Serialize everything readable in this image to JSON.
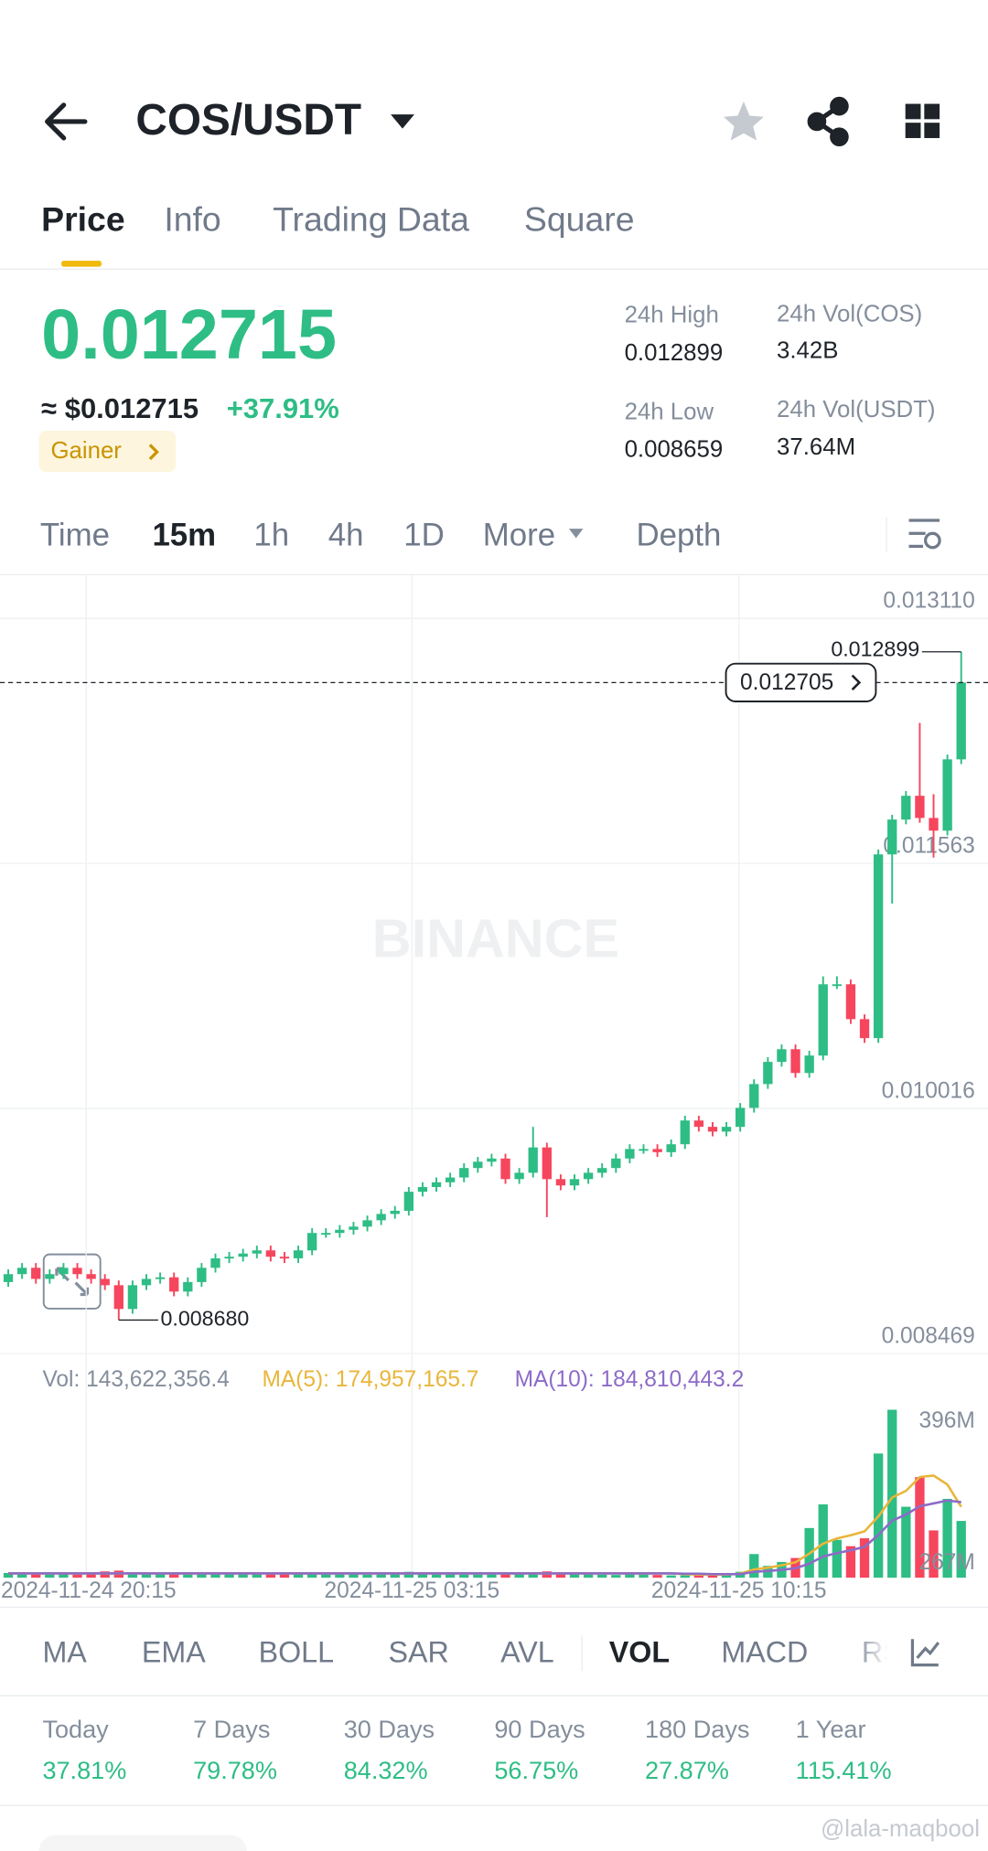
{
  "header": {
    "title": "COS/USDT",
    "tabs": [
      "Price",
      "Info",
      "Trading Data",
      "Square"
    ]
  },
  "price": {
    "last": "0.012715",
    "approx": "≈ $0.012715",
    "change": "+37.91%",
    "badge": "Gainer",
    "stats": [
      {
        "label": "24h High",
        "value": "0.012899"
      },
      {
        "label": "24h Vol(COS)",
        "value": "3.42B"
      },
      {
        "label": "24h Low",
        "value": "0.008659"
      },
      {
        "label": "24h Vol(USDT)",
        "value": "37.64M"
      }
    ]
  },
  "intervals": [
    "Time",
    "15m",
    "1h",
    "4h",
    "1D",
    "More",
    "Depth"
  ],
  "chart_data": [
    {
      "type": "candlestick",
      "watermark": "BINANCE",
      "up_color": "#2ebd85",
      "down_color": "#f6465d",
      "ylim": [
        0.008469,
        0.013386
      ],
      "yticks": [
        {
          "value": 0.01311,
          "label": "0.013110"
        },
        {
          "value": 0.011563,
          "label": "0.011563"
        },
        {
          "value": 0.010016,
          "label": "0.010016"
        },
        {
          "value": 0.008469,
          "label": "0.008469"
        }
      ],
      "current_price": 0.012705,
      "annotations": {
        "high": "0.012899",
        "low": "0.008680"
      },
      "candles": [
        [
          0.00892,
          0.009,
          0.00889,
          0.00897
        ],
        [
          0.00897,
          0.00904,
          0.00894,
          0.00901
        ],
        [
          0.00901,
          0.00904,
          0.00891,
          0.00894
        ],
        [
          0.00894,
          0.009,
          0.00891,
          0.00897
        ],
        [
          0.00897,
          0.00904,
          0.00894,
          0.00901
        ],
        [
          0.00901,
          0.00904,
          0.00894,
          0.00897
        ],
        [
          0.00897,
          0.009,
          0.00891,
          0.00894
        ],
        [
          0.00894,
          0.00897,
          0.00887,
          0.0089
        ],
        [
          0.0089,
          0.00893,
          0.00868,
          0.00875
        ],
        [
          0.00875,
          0.00893,
          0.00872,
          0.0089
        ],
        [
          0.0089,
          0.00897,
          0.00887,
          0.00894
        ],
        [
          0.00894,
          0.00898,
          0.00891,
          0.00895
        ],
        [
          0.00895,
          0.00898,
          0.00883,
          0.00886
        ],
        [
          0.00886,
          0.00895,
          0.00883,
          0.00892
        ],
        [
          0.00892,
          0.00904,
          0.00889,
          0.00901
        ],
        [
          0.00901,
          0.0091,
          0.00898,
          0.00907
        ],
        [
          0.00907,
          0.00911,
          0.00904,
          0.00908
        ],
        [
          0.00908,
          0.00913,
          0.00905,
          0.0091
        ],
        [
          0.0091,
          0.00915,
          0.00907,
          0.00912
        ],
        [
          0.00912,
          0.00915,
          0.00905,
          0.00908
        ],
        [
          0.00908,
          0.00911,
          0.00904,
          0.00907
        ],
        [
          0.00907,
          0.00915,
          0.00904,
          0.00912
        ],
        [
          0.00912,
          0.00926,
          0.00909,
          0.00923
        ],
        [
          0.00923,
          0.00926,
          0.0092,
          0.00923
        ],
        [
          0.00923,
          0.00928,
          0.0092,
          0.00925
        ],
        [
          0.00925,
          0.0093,
          0.00922,
          0.00927
        ],
        [
          0.00927,
          0.00934,
          0.00924,
          0.00931
        ],
        [
          0.00931,
          0.00938,
          0.00928,
          0.00935
        ],
        [
          0.00935,
          0.0094,
          0.00932,
          0.00937
        ],
        [
          0.00937,
          0.00952,
          0.00934,
          0.00949
        ],
        [
          0.00949,
          0.00955,
          0.00946,
          0.00952
        ],
        [
          0.00952,
          0.00958,
          0.00949,
          0.00955
        ],
        [
          0.00955,
          0.00961,
          0.00952,
          0.00958
        ],
        [
          0.00958,
          0.00967,
          0.00955,
          0.00964
        ],
        [
          0.00964,
          0.00971,
          0.00961,
          0.00968
        ],
        [
          0.00968,
          0.00973,
          0.00965,
          0.0097
        ],
        [
          0.0097,
          0.00973,
          0.00954,
          0.00957
        ],
        [
          0.00957,
          0.00964,
          0.00954,
          0.00961
        ],
        [
          0.00961,
          0.0099,
          0.00958,
          0.00977
        ],
        [
          0.00977,
          0.0098,
          0.00933,
          0.00957
        ],
        [
          0.00957,
          0.0096,
          0.0095,
          0.00953
        ],
        [
          0.00953,
          0.0096,
          0.0095,
          0.00957
        ],
        [
          0.00957,
          0.00964,
          0.00954,
          0.00961
        ],
        [
          0.00961,
          0.00967,
          0.00958,
          0.00964
        ],
        [
          0.00964,
          0.00973,
          0.00961,
          0.0097
        ],
        [
          0.0097,
          0.00979,
          0.00967,
          0.00976
        ],
        [
          0.00976,
          0.00979,
          0.00973,
          0.00976
        ],
        [
          0.00976,
          0.00979,
          0.00971,
          0.00974
        ],
        [
          0.00974,
          0.00982,
          0.00971,
          0.00979
        ],
        [
          0.00979,
          0.00997,
          0.00976,
          0.00994
        ],
        [
          0.00994,
          0.00997,
          0.00987,
          0.0099
        ],
        [
          0.0099,
          0.00993,
          0.00984,
          0.00987
        ],
        [
          0.00987,
          0.00993,
          0.00984,
          0.0099
        ],
        [
          0.0099,
          0.01005,
          0.00987,
          0.01002
        ],
        [
          0.01002,
          0.0102,
          0.00999,
          0.01017
        ],
        [
          0.01017,
          0.01034,
          0.01014,
          0.01031
        ],
        [
          0.01031,
          0.01042,
          0.01028,
          0.01039
        ],
        [
          0.01039,
          0.01042,
          0.01021,
          0.01024
        ],
        [
          0.01024,
          0.01038,
          0.01021,
          0.01035
        ],
        [
          0.01035,
          0.01085,
          0.01032,
          0.0108
        ],
        [
          0.0108,
          0.01085,
          0.01077,
          0.0108
        ],
        [
          0.0108,
          0.01083,
          0.01055,
          0.01058
        ],
        [
          0.01058,
          0.01061,
          0.01043,
          0.01046
        ],
        [
          0.01046,
          0.01165,
          0.01043,
          0.01162
        ],
        [
          0.01162,
          0.01187,
          0.01131,
          0.01184
        ],
        [
          0.01184,
          0.01202,
          0.01181,
          0.01199
        ],
        [
          0.01199,
          0.01245,
          0.01182,
          0.01185
        ],
        [
          0.01185,
          0.012,
          0.0116,
          0.01177
        ],
        [
          0.01177,
          0.01225,
          0.01174,
          0.01222
        ],
        [
          0.01222,
          0.012899,
          0.01219,
          0.012705
        ]
      ]
    },
    {
      "type": "bar",
      "label": "Vol: 143,622,356.4",
      "ylim": [
        0,
        440
      ],
      "yticks": [
        {
          "value": 396,
          "label": "396M"
        }
      ],
      "axis_note": "267M",
      "xlabels": [
        "2024-11-24 20:15",
        "2024-11-25 03:15",
        "2024-11-25 10:15"
      ],
      "values": [
        12,
        9,
        11,
        14,
        10,
        8,
        12,
        16,
        18,
        13,
        10,
        9,
        11,
        8,
        10,
        12,
        9,
        11,
        10,
        13,
        9,
        12,
        14,
        10,
        9,
        11,
        8,
        10,
        12,
        15,
        11,
        9,
        10,
        8,
        9,
        13,
        11,
        10,
        14,
        16,
        12,
        9,
        10,
        8,
        7,
        9,
        8,
        7,
        6,
        6,
        8,
        10,
        12,
        15,
        60,
        30,
        40,
        50,
        126,
        186,
        96,
        80,
        100,
        315,
        426,
        180,
        255,
        120,
        200,
        144
      ],
      "series": [
        {
          "name": "MA(5): 174,957,165.7",
          "color": "#e8b63a",
          "values": [
            11,
            11,
            11,
            11,
            11,
            11,
            11,
            11,
            11,
            11,
            11,
            11,
            11,
            11,
            11,
            11,
            11,
            11,
            11,
            11,
            11,
            11,
            11,
            11,
            11,
            11,
            11,
            11,
            11,
            11,
            11,
            11,
            11,
            11,
            11,
            11,
            11,
            11,
            11,
            11,
            11,
            11,
            11,
            11,
            11,
            11,
            11,
            11,
            11,
            9,
            8,
            8,
            8,
            10.2,
            21,
            25.4,
            31.4,
            39,
            61.2,
            86.4,
            99.6,
            107.6,
            117.6,
            155.4,
            203.4,
            220.2,
            255.2,
            259.2,
            236.2,
            179.8
          ]
        },
        {
          "name": "MA(10): 184,810,443.2",
          "color": "#8d6bc8",
          "values": [
            11,
            11,
            11,
            11,
            11,
            11,
            11,
            11,
            11,
            11,
            11,
            11,
            11,
            11,
            11,
            11,
            11,
            11,
            11,
            11,
            11,
            11,
            11,
            11,
            11,
            11,
            11,
            11,
            11,
            11,
            11,
            11,
            11,
            11,
            11,
            11,
            11,
            11,
            11,
            11,
            11,
            11,
            11,
            11,
            11,
            11,
            11,
            11,
            11,
            10,
            10,
            9,
            9,
            9,
            15,
            17,
            20,
            24,
            35.7,
            53.7,
            62.5,
            69.5,
            78.3,
            108.3,
            144.9,
            159.9,
            181.4,
            188.4,
            195.8,
            191.6
          ]
        }
      ]
    }
  ],
  "indicators": [
    "MA",
    "EMA",
    "BOLL",
    "SAR",
    "AVL",
    "VOL",
    "MACD",
    "RS"
  ],
  "performance": [
    {
      "label": "Today",
      "value": "37.81%"
    },
    {
      "label": "7 Days",
      "value": "79.78%"
    },
    {
      "label": "30 Days",
      "value": "84.32%"
    },
    {
      "label": "90 Days",
      "value": "56.75%"
    },
    {
      "label": "180 Days",
      "value": "27.87%"
    },
    {
      "label": "1 Year",
      "value": "115.41%"
    }
  ],
  "watermark": "@lala-maqbool"
}
